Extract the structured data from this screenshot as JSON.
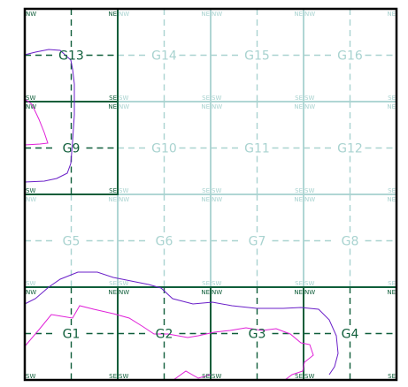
{
  "map": {
    "cells": [
      {
        "id": "G13",
        "label": "G13",
        "active": true
      },
      {
        "id": "G14",
        "label": "G14",
        "active": false
      },
      {
        "id": "G15",
        "label": "G15",
        "active": false
      },
      {
        "id": "G16",
        "label": "G16",
        "active": false
      },
      {
        "id": "G9",
        "label": "G9",
        "active": true
      },
      {
        "id": "G10",
        "label": "G10",
        "active": false
      },
      {
        "id": "G11",
        "label": "G11",
        "active": false
      },
      {
        "id": "G12",
        "label": "G12",
        "active": false
      },
      {
        "id": "G5",
        "label": "G5",
        "active": false
      },
      {
        "id": "G6",
        "label": "G6",
        "active": false
      },
      {
        "id": "G7",
        "label": "G7",
        "active": false
      },
      {
        "id": "G8",
        "label": "G8",
        "active": false
      },
      {
        "id": "G1",
        "label": "G1",
        "active": true
      },
      {
        "id": "G2",
        "label": "G2",
        "active": true
      },
      {
        "id": "G3",
        "label": "G3",
        "active": true
      },
      {
        "id": "G4",
        "label": "G4",
        "active": true
      }
    ],
    "corner_labels": {
      "nw": "NW",
      "ne": "NE",
      "sw": "SW",
      "se": "SE"
    },
    "colors": {
      "active_grid": "#0f5e3a",
      "inactive_grid": "#a9d3d0",
      "active_text": "#0f5e3a",
      "inactive_text": "#a9d3d0",
      "frame": "#000000",
      "boundary_purple": "#6a1fc8",
      "boundary_magenta": "#e020d8"
    }
  }
}
